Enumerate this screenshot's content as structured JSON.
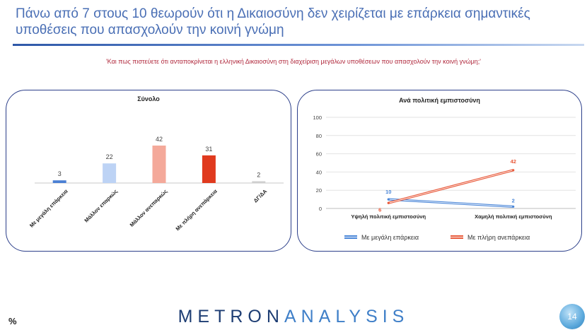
{
  "header": {
    "title": "Πάνω από 7 στους 10 θεωρούν ότι η Δικαιοσύνη δεν χειρίζεται με επάρκεια σημαντικές υποθέσεις που απασχολούν την κοινή γνώμη",
    "question": "'Και πως πιστεύετε ότι ανταποκρίνεται η ελληνική Δικαιοσύνη στη διαχείριση μεγάλων υποθέσεων που απασχολούν την κοινή γνώμη;'"
  },
  "footer": {
    "unit": "%",
    "brand_part1": "METRON",
    "brand_part2": "ANALYSIS",
    "page_number": "14"
  },
  "chart_data": [
    {
      "type": "bar",
      "title": "Σύνολο",
      "categories": [
        "Με μεγάλη επάρκεια",
        "Μάλλον επαρκώς",
        "Μάλλον ανεπαρκώς",
        "Με πλήρη ανεπάρκεια",
        "ΔΓ/ΔΑ"
      ],
      "values": [
        3,
        22,
        42,
        31,
        2
      ],
      "colors": [
        "#4a7fd4",
        "#bdd3f5",
        "#f4a99a",
        "#e03a1e",
        "#cfcfcf"
      ],
      "ylim": [
        0,
        45
      ],
      "grid": false,
      "legend": "none"
    },
    {
      "type": "line",
      "title": "Ανά πολιτική εμπιστοσύνη",
      "categories": [
        "Υψηλή πολιτική εμπιστοσύνη",
        "Χαμηλή πολιτική εμπιστοσύνη"
      ],
      "series": [
        {
          "name": "Με μεγάλη επάρκεια",
          "values": [
            10,
            2
          ],
          "color": "#4a86d8"
        },
        {
          "name": "Με πλήρη ανεπάρκεια",
          "values": [
            6,
            42
          ],
          "color": "#e8593a"
        }
      ],
      "yticks": [
        0,
        20,
        40,
        60,
        80,
        100
      ],
      "ylim": [
        0,
        100
      ],
      "grid": true,
      "legend": "bottom"
    }
  ]
}
